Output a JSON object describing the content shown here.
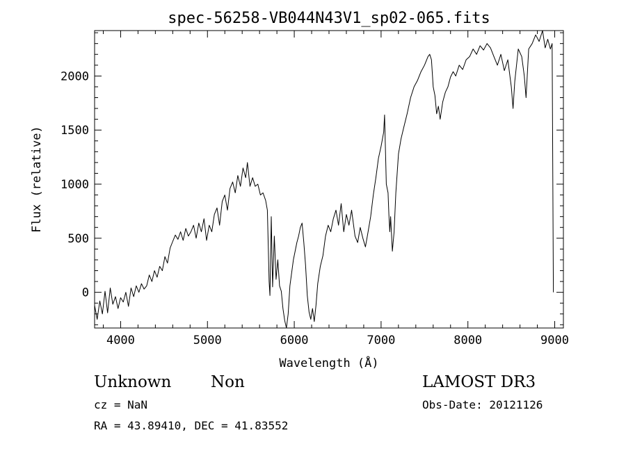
{
  "chart_data": {
    "type": "line",
    "title": "spec-56258-VB044N43V1_sp02-065.fits",
    "xlabel": "Wavelength (Å)",
    "ylabel": "Flux (relative)",
    "xlim": [
      3700,
      9100
    ],
    "ylim": [
      -330,
      2420
    ],
    "xticks": [
      4000,
      5000,
      6000,
      7000,
      8000,
      9000
    ],
    "yticks": [
      0,
      500,
      1000,
      1500,
      2000
    ],
    "grid": false,
    "series": [
      {
        "points": [
          [
            3700,
            -120
          ],
          [
            3730,
            -250
          ],
          [
            3760,
            -80
          ],
          [
            3790,
            -200
          ],
          [
            3820,
            10
          ],
          [
            3850,
            -190
          ],
          [
            3880,
            40
          ],
          [
            3910,
            -110
          ],
          [
            3940,
            -40
          ],
          [
            3970,
            -150
          ],
          [
            4000,
            -50
          ],
          [
            4030,
            -90
          ],
          [
            4060,
            0
          ],
          [
            4090,
            -130
          ],
          [
            4120,
            40
          ],
          [
            4150,
            -40
          ],
          [
            4180,
            60
          ],
          [
            4210,
            0
          ],
          [
            4240,
            80
          ],
          [
            4270,
            30
          ],
          [
            4300,
            60
          ],
          [
            4330,
            160
          ],
          [
            4360,
            100
          ],
          [
            4390,
            200
          ],
          [
            4420,
            140
          ],
          [
            4450,
            240
          ],
          [
            4480,
            200
          ],
          [
            4510,
            330
          ],
          [
            4540,
            270
          ],
          [
            4570,
            410
          ],
          [
            4600,
            470
          ],
          [
            4630,
            530
          ],
          [
            4660,
            490
          ],
          [
            4690,
            560
          ],
          [
            4720,
            480
          ],
          [
            4750,
            590
          ],
          [
            4780,
            520
          ],
          [
            4810,
            560
          ],
          [
            4840,
            620
          ],
          [
            4870,
            500
          ],
          [
            4900,
            640
          ],
          [
            4930,
            560
          ],
          [
            4960,
            680
          ],
          [
            4990,
            480
          ],
          [
            5020,
            620
          ],
          [
            5050,
            560
          ],
          [
            5080,
            720
          ],
          [
            5110,
            780
          ],
          [
            5140,
            620
          ],
          [
            5170,
            840
          ],
          [
            5200,
            900
          ],
          [
            5230,
            760
          ],
          [
            5260,
            960
          ],
          [
            5290,
            1020
          ],
          [
            5320,
            920
          ],
          [
            5350,
            1080
          ],
          [
            5380,
            980
          ],
          [
            5410,
            1150
          ],
          [
            5440,
            1060
          ],
          [
            5460,
            1200
          ],
          [
            5490,
            980
          ],
          [
            5520,
            1060
          ],
          [
            5550,
            980
          ],
          [
            5580,
            1000
          ],
          [
            5610,
            900
          ],
          [
            5640,
            920
          ],
          [
            5670,
            850
          ],
          [
            5690,
            760
          ],
          [
            5700,
            450
          ],
          [
            5710,
            100
          ],
          [
            5720,
            -30
          ],
          [
            5735,
            700
          ],
          [
            5750,
            50
          ],
          [
            5770,
            520
          ],
          [
            5790,
            120
          ],
          [
            5810,
            300
          ],
          [
            5830,
            60
          ],
          [
            5850,
            10
          ],
          [
            5870,
            -150
          ],
          [
            5890,
            -260
          ],
          [
            5910,
            -330
          ],
          [
            5930,
            -200
          ],
          [
            5950,
            60
          ],
          [
            5970,
            180
          ],
          [
            5990,
            300
          ],
          [
            6010,
            380
          ],
          [
            6030,
            460
          ],
          [
            6050,
            520
          ],
          [
            6070,
            600
          ],
          [
            6090,
            640
          ],
          [
            6110,
            460
          ],
          [
            6130,
            250
          ],
          [
            6150,
            -30
          ],
          [
            6170,
            -180
          ],
          [
            6190,
            -250
          ],
          [
            6210,
            -150
          ],
          [
            6230,
            -270
          ],
          [
            6250,
            -120
          ],
          [
            6270,
            80
          ],
          [
            6300,
            240
          ],
          [
            6330,
            340
          ],
          [
            6360,
            520
          ],
          [
            6390,
            620
          ],
          [
            6420,
            560
          ],
          [
            6450,
            680
          ],
          [
            6480,
            760
          ],
          [
            6510,
            620
          ],
          [
            6540,
            820
          ],
          [
            6570,
            560
          ],
          [
            6600,
            720
          ],
          [
            6630,
            620
          ],
          [
            6660,
            760
          ],
          [
            6700,
            520
          ],
          [
            6730,
            460
          ],
          [
            6760,
            600
          ],
          [
            6790,
            500
          ],
          [
            6820,
            420
          ],
          [
            6850,
            560
          ],
          [
            6880,
            700
          ],
          [
            6910,
            900
          ],
          [
            6940,
            1060
          ],
          [
            6970,
            1240
          ],
          [
            7000,
            1350
          ],
          [
            7030,
            1480
          ],
          [
            7040,
            1640
          ],
          [
            7060,
            1000
          ],
          [
            7080,
            920
          ],
          [
            7090,
            720
          ],
          [
            7100,
            560
          ],
          [
            7110,
            700
          ],
          [
            7130,
            380
          ],
          [
            7150,
            560
          ],
          [
            7170,
            920
          ],
          [
            7200,
            1280
          ],
          [
            7230,
            1420
          ],
          [
            7260,
            1520
          ],
          [
            7300,
            1650
          ],
          [
            7340,
            1800
          ],
          [
            7380,
            1900
          ],
          [
            7420,
            1960
          ],
          [
            7460,
            2040
          ],
          [
            7500,
            2100
          ],
          [
            7540,
            2180
          ],
          [
            7560,
            2200
          ],
          [
            7580,
            2150
          ],
          [
            7600,
            1900
          ],
          [
            7620,
            1820
          ],
          [
            7640,
            1650
          ],
          [
            7660,
            1720
          ],
          [
            7680,
            1600
          ],
          [
            7710,
            1760
          ],
          [
            7740,
            1850
          ],
          [
            7770,
            1900
          ],
          [
            7800,
            1990
          ],
          [
            7830,
            2040
          ],
          [
            7860,
            2000
          ],
          [
            7900,
            2100
          ],
          [
            7940,
            2060
          ],
          [
            7980,
            2150
          ],
          [
            8020,
            2180
          ],
          [
            8060,
            2250
          ],
          [
            8100,
            2200
          ],
          [
            8140,
            2280
          ],
          [
            8180,
            2240
          ],
          [
            8220,
            2300
          ],
          [
            8260,
            2260
          ],
          [
            8300,
            2180
          ],
          [
            8340,
            2100
          ],
          [
            8380,
            2200
          ],
          [
            8420,
            2050
          ],
          [
            8460,
            2150
          ],
          [
            8500,
            1900
          ],
          [
            8520,
            1700
          ],
          [
            8540,
            1950
          ],
          [
            8580,
            2250
          ],
          [
            8620,
            2180
          ],
          [
            8650,
            2000
          ],
          [
            8670,
            1800
          ],
          [
            8700,
            2250
          ],
          [
            8740,
            2300
          ],
          [
            8780,
            2380
          ],
          [
            8820,
            2320
          ],
          [
            8860,
            2420
          ],
          [
            8890,
            2260
          ],
          [
            8920,
            2340
          ],
          [
            8950,
            2250
          ],
          [
            8970,
            2300
          ],
          [
            8985,
            0
          ]
        ]
      }
    ]
  },
  "footer": {
    "object_class": "Unknown",
    "object_subclass": "Non",
    "survey": "LAMOST DR3",
    "redshift": "cz = NaN",
    "obs_date": "Obs-Date: 20121126",
    "coords": "RA =  43.89410, DEC =  41.83552"
  }
}
